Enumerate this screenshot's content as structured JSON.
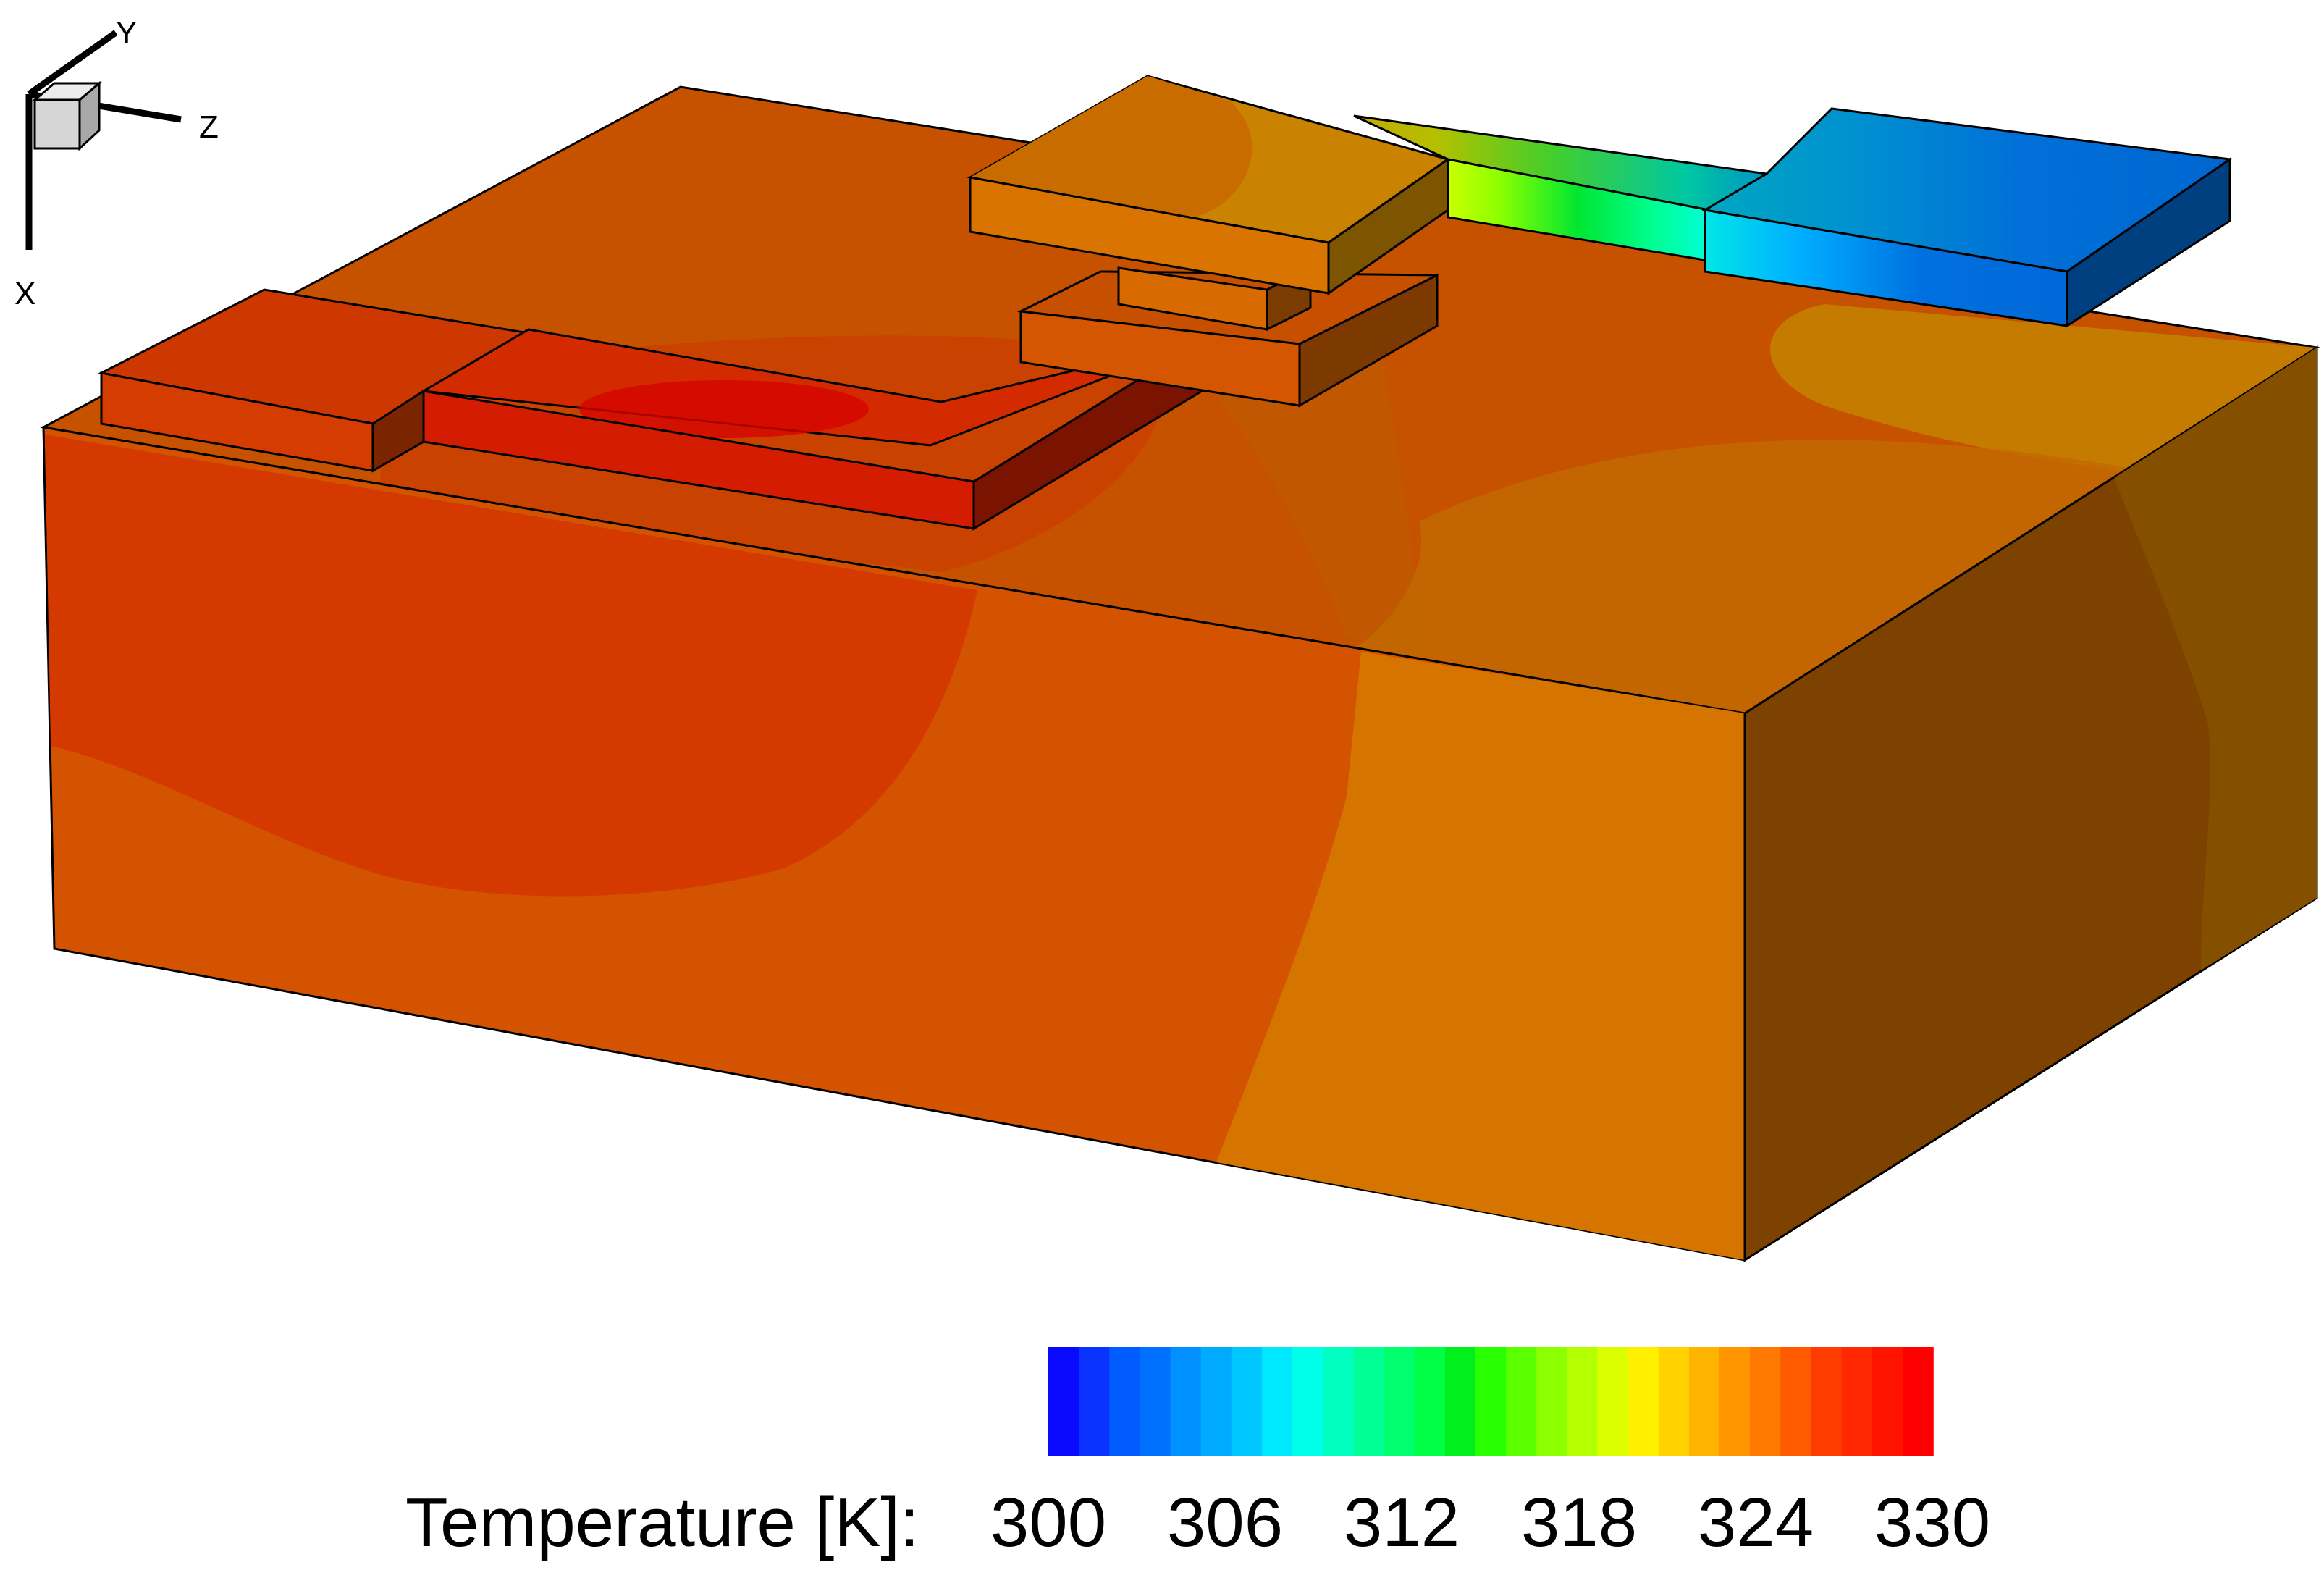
{
  "axis_triad": {
    "y_label": "Y",
    "z_label": "Z",
    "x_label": "X"
  },
  "legend": {
    "title": "Temperature [K]:",
    "ticks": [
      "300",
      "306",
      "312",
      "318",
      "324",
      "330"
    ],
    "min": 300,
    "max": 330,
    "band_colors": [
      "#0a0aff",
      "#0a33ff",
      "#005cff",
      "#0070ff",
      "#0090ff",
      "#00aaff",
      "#00c8ff",
      "#00e8ff",
      "#00ffe8",
      "#00ffc0",
      "#00ff96",
      "#00ff6e",
      "#00ff46",
      "#00f01e",
      "#28ff00",
      "#5aff00",
      "#8cff00",
      "#b4ff00",
      "#dcff00",
      "#fff000",
      "#ffd200",
      "#ffb400",
      "#ff9600",
      "#ff7800",
      "#ff5a00",
      "#ff3c00",
      "#ff2800",
      "#ff1400",
      "#ff0000"
    ]
  },
  "colors": {
    "substrate_front": "#d35300",
    "substrate_top": "#c65200",
    "substrate_side": "#7e4200"
  }
}
